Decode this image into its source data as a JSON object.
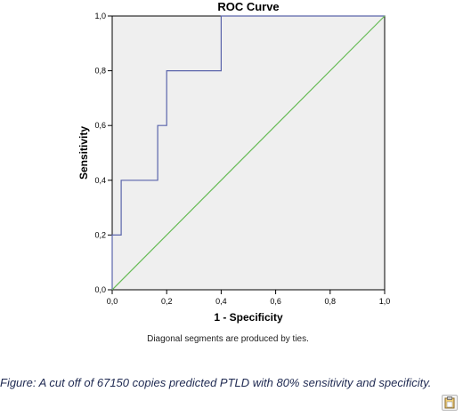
{
  "chart_data": {
    "type": "line",
    "title": "ROC Curve",
    "xlabel": "1 - Specificity",
    "ylabel": "Sensitivity",
    "xlim": [
      0.0,
      1.0
    ],
    "ylim": [
      0.0,
      1.0
    ],
    "x_ticks": [
      "0,0",
      "0,2",
      "0,4",
      "0,6",
      "0,8",
      "1,0"
    ],
    "y_ticks": [
      "0,0",
      "0,2",
      "0,4",
      "0,6",
      "0,8",
      "1,0"
    ],
    "grid": false,
    "plot_background": "#efefef",
    "series": [
      {
        "color": "#5a64ab",
        "x": [
          0.0,
          0.0,
          0.033,
          0.033,
          0.167,
          0.167,
          0.183,
          0.183,
          0.2,
          0.2,
          0.4,
          0.4,
          1.0
        ],
        "y": [
          0.0,
          0.2,
          0.2,
          0.4,
          0.4,
          0.6,
          0.6,
          0.6,
          0.6,
          0.8,
          0.8,
          1.0,
          1.0
        ]
      },
      {
        "color": "#66bb55",
        "x": [
          0.0,
          1.0
        ],
        "y": [
          0.0,
          1.0
        ]
      }
    ],
    "footnote": "Diagonal segments are produced by ties."
  },
  "caption": "Figure: A cut off of 67150 copies predicted PTLD with 80% sensitivity and specificity.",
  "widget": {
    "icon": "clipboard-icon"
  }
}
